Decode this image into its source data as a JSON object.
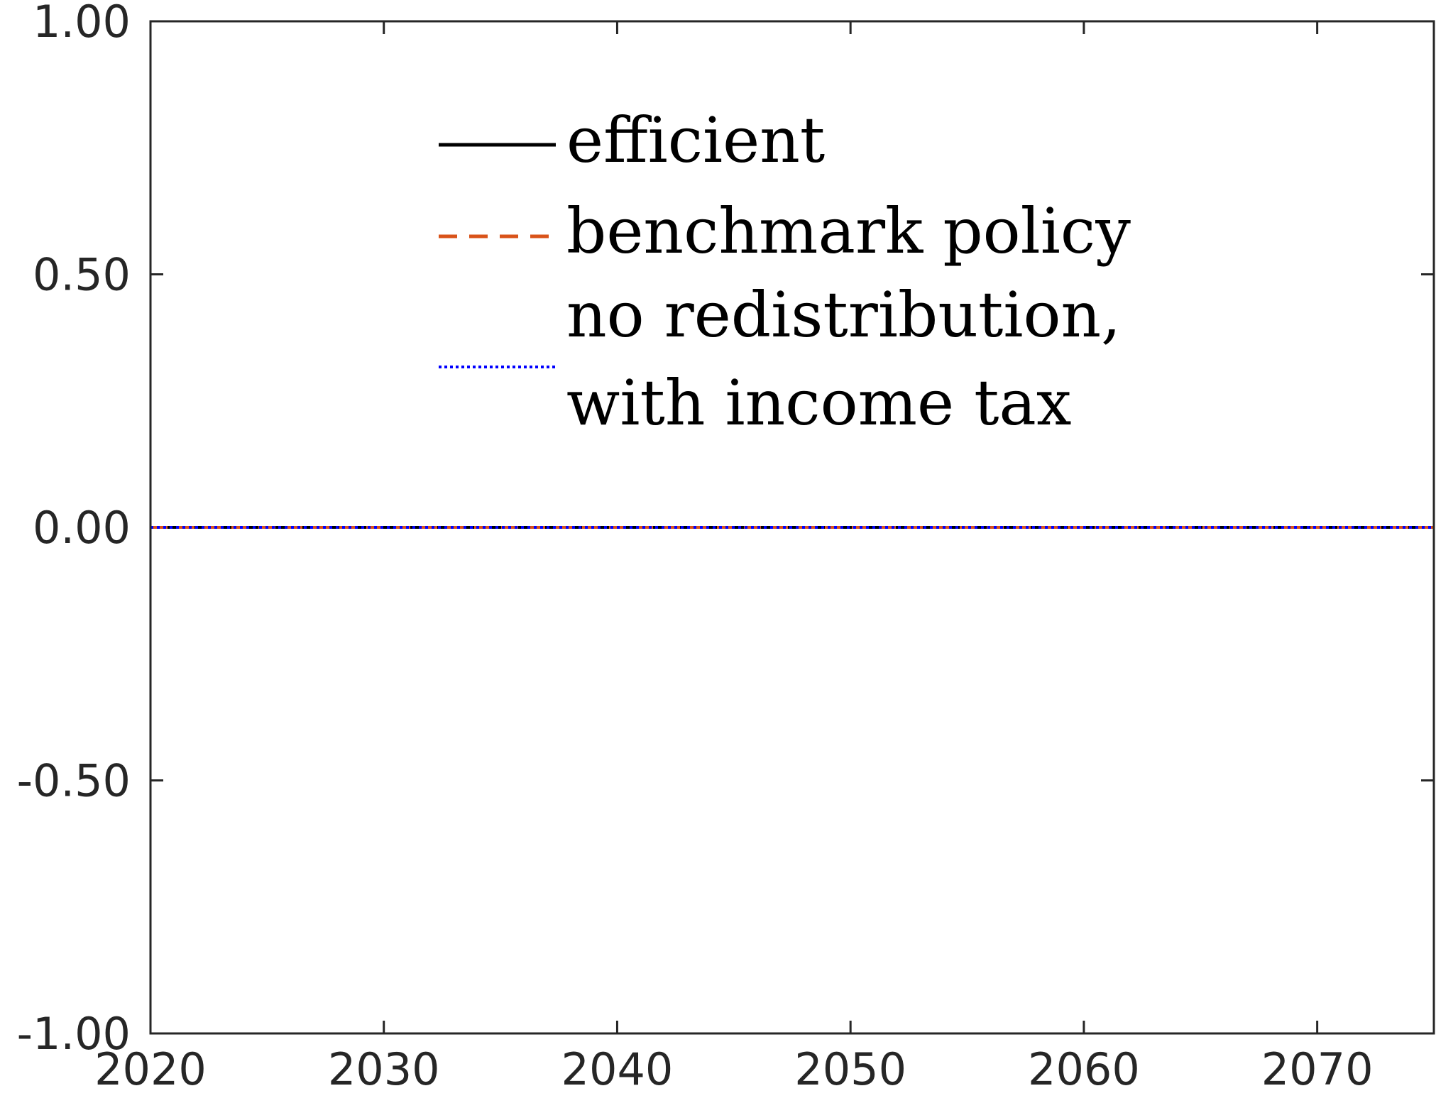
{
  "chart_data": {
    "type": "line",
    "title": "",
    "xlabel": "",
    "ylabel": "",
    "xlim": [
      2020,
      2075
    ],
    "ylim": [
      -1.0,
      1.0
    ],
    "x_ticks": [
      2020,
      2030,
      2040,
      2050,
      2060,
      2070
    ],
    "x_tick_labels": [
      "2020",
      "2030",
      "2040",
      "2050",
      "2060",
      "2070"
    ],
    "y_ticks": [
      -1.0,
      -0.5,
      0.0,
      0.5,
      1.0
    ],
    "y_tick_labels": [
      "-1.00",
      "-0.50",
      "0.00",
      "0.50",
      "1.00"
    ],
    "grid": false,
    "legend_position": "top-center",
    "series": [
      {
        "name": "efficient",
        "style": "solid",
        "color": "#000000",
        "x": [
          2020,
          2075
        ],
        "y": [
          0.0,
          0.0
        ]
      },
      {
        "name": "benchmark policy",
        "style": "dashed",
        "color": "#D95319",
        "x": [
          2020,
          2075
        ],
        "y": [
          0.0,
          0.0
        ]
      },
      {
        "name": "no redistribution, with income tax",
        "legend_lines": [
          "no redistribution,",
          "with income tax"
        ],
        "style": "dotted",
        "color": "#0000FF",
        "x": [
          2020,
          2075
        ],
        "y": [
          0.0,
          0.0
        ]
      }
    ]
  }
}
